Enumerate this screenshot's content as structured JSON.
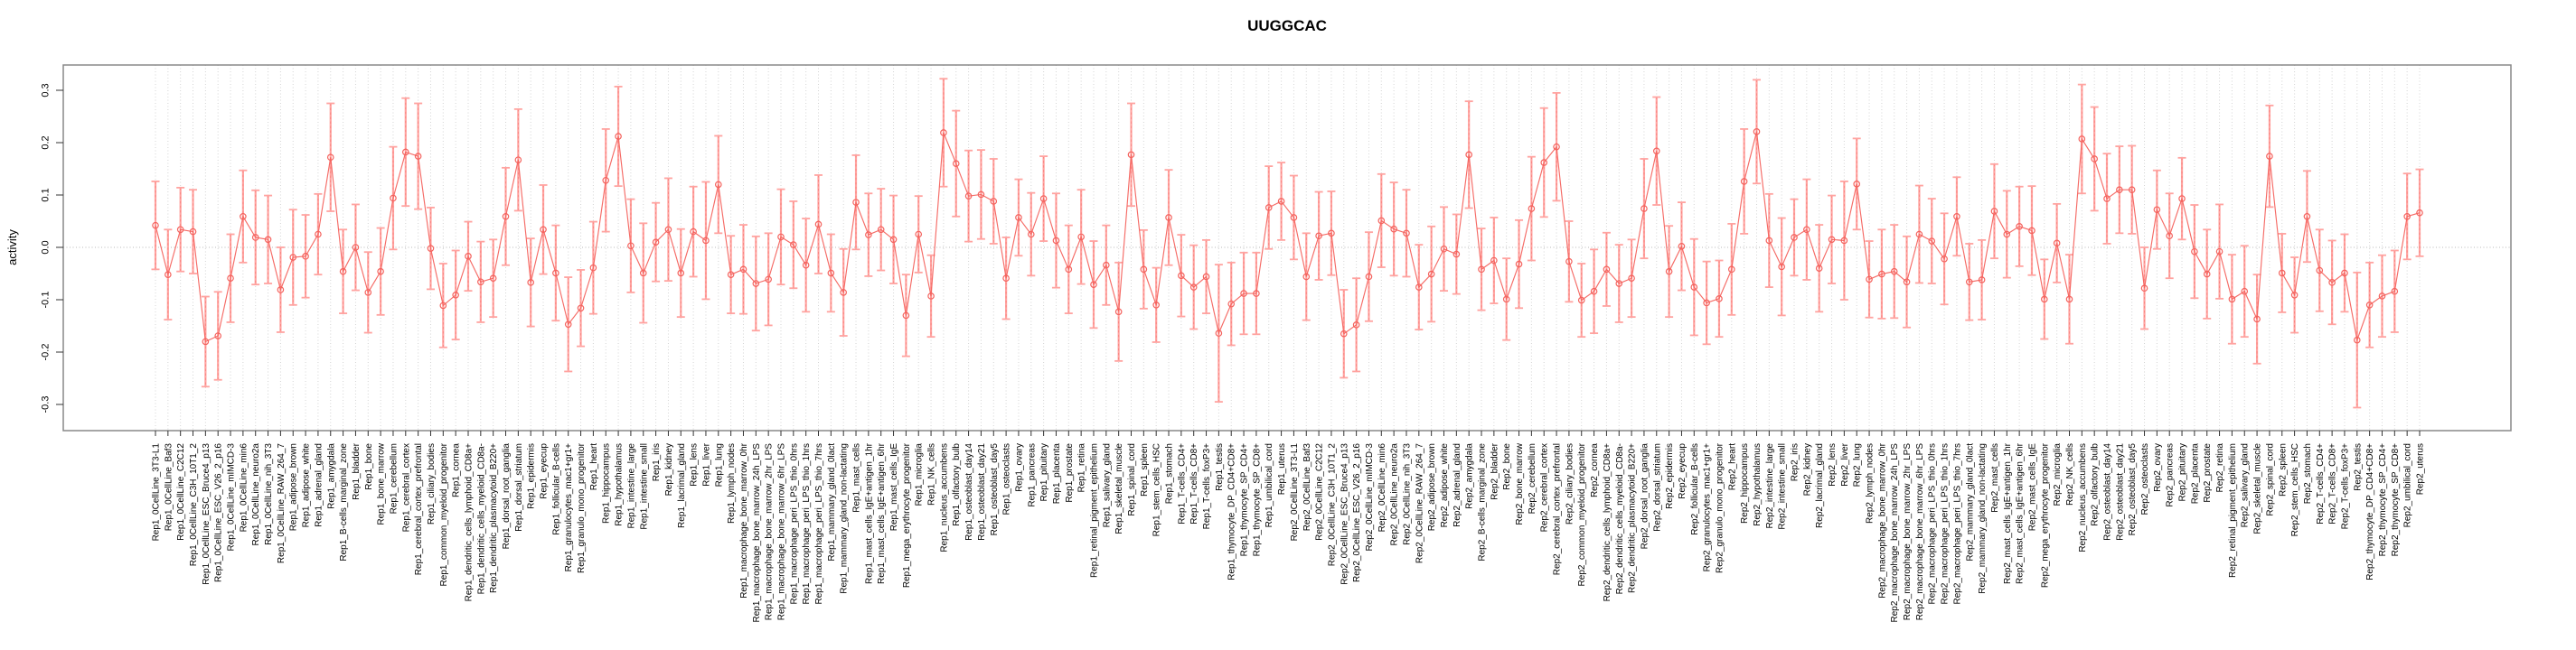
{
  "chart_data": {
    "type": "scatter",
    "title": "UUGGCAC",
    "xlabel": "",
    "ylabel": "activity",
    "ylim": [
      -0.33,
      0.35
    ],
    "yticks": [
      -0.3,
      -0.2,
      -0.1,
      0.0,
      0.1,
      0.2,
      0.3
    ],
    "grid": "dotted vertical gridline per category; dotted horizontal line at 0",
    "legend_position": "none",
    "marker": "open-circle",
    "colors": {
      "point_line": "#f4635e",
      "error_bar": "#ffa3a0",
      "gridline": "#d4d4d4",
      "zero_line": "#b8b8b8",
      "plot_border": "#888888",
      "axis_tick": "#333333",
      "tick_label": "#000000"
    },
    "categories": [
      "Rep1_0CellLine_3T3-L1",
      "Rep1_0CellLine_Baf3",
      "Rep1_0CellLine_C2C12",
      "Rep1_0CellLine_C3H_10T1_2",
      "Rep1_0CellLine_ESC_Bruce4_p13",
      "Rep1_0CellLine_ESC_V26_2_p16",
      "Rep1_0CellLine_mIMCD-3",
      "Rep1_0CellLine_min6",
      "Rep1_0CellLine_neuro2a",
      "Rep1_0CellLine_nih_3T3",
      "Rep1_0CellLine_RAW_264_7",
      "Rep1_adipose_brown",
      "Rep1_adipose_white",
      "Rep1_adrenal_gland",
      "Rep1_amygdala",
      "Rep1_B-cells_marginal_zone",
      "Rep1_bladder",
      "Rep1_bone",
      "Rep1_bone_marrow",
      "Rep1_cerebellum",
      "Rep1_cerebral_cortex",
      "Rep1_cerebral_cortex_prefrontal",
      "Rep1_ciliary_bodies",
      "Rep1_common_myeloid_progenitor",
      "Rep1_cornea",
      "Rep1_dendritic_cells_lymphoid_CD8a+",
      "Rep1_dendritic_cells_myeloid_CD8a-",
      "Rep1_dendritic_plasmacytoid_B220+",
      "Rep1_dorsal_root_ganglia",
      "Rep1_dorsal_striatum",
      "Rep1_epidermis",
      "Rep1_eyecup",
      "Rep1_follicular_B-cells",
      "Rep1_granulocytes_mac1+gr1+",
      "Rep1_granulo_mono_progenitor",
      "Rep1_heart",
      "Rep1_hippocampus",
      "Rep1_hypothalamus",
      "Rep1_intestine_large",
      "Rep1_intestine_small",
      "Rep1_iris",
      "Rep1_kidney",
      "Rep1_lacrimal_gland",
      "Rep1_lens",
      "Rep1_liver",
      "Rep1_lung",
      "Rep1_lymph_nodes",
      "Rep1_macrophage_bone_marrow_0hr",
      "Rep1_macrophage_bone_marrow_24h_LPS",
      "Rep1_macrophage_bone_marrow_2hr_LPS",
      "Rep1_macrophage_bone_marrow_6hr_LPS",
      "Rep1_macrophage_peri_LPS_thio_0hrs",
      "Rep1_macrophage_peri_LPS_thio_1hrs",
      "Rep1_macrophage_peri_LPS_thio_7hrs",
      "Rep1_mammary_gland_0lact",
      "Rep1_mammary_gland_non-lactating",
      "Rep1_mast_cells",
      "Rep1_mast_cells_IgE+antigen_1hr",
      "Rep1_mast_cells_IgE+antigen_6hr",
      "Rep1_mast_cells_IgE",
      "Rep1_mega_erythrocyte_progenitor",
      "Rep1_microglia",
      "Rep1_NK_cells",
      "Rep1_nucleus_accumbens",
      "Rep1_olfactory_bulb",
      "Rep1_osteoblast_day14",
      "Rep1_osteoblast_day21",
      "Rep1_osteoblast_day5",
      "Rep1_osteoclasts",
      "Rep1_ovary",
      "Rep1_pancreas",
      "Rep1_pituitary",
      "Rep1_placenta",
      "Rep1_prostate",
      "Rep1_retina",
      "Rep1_retinal_pigment_epithelium",
      "Rep1_salivary_gland",
      "Rep1_skeletal_muscle",
      "Rep1_spinal_cord",
      "Rep1_spleen",
      "Rep1_stem_cells_HSC",
      "Rep1_stomach",
      "Rep1_T-cells_CD4+",
      "Rep1_T-cells_CD8+",
      "Rep1_T-cells_foxP3+",
      "Rep1_testis",
      "Rep1_thymocyte_DP_CD4+CD8+",
      "Rep1_thymocyte_SP_CD4+",
      "Rep1_thymocyte_SP_CD8+",
      "Rep1_umbilical_cord",
      "Rep1_uterus",
      "Rep2_0CellLine_3T3-L1",
      "Rep2_0CellLine_Baf3",
      "Rep2_0CellLine_C2C12",
      "Rep2_0CellLine_C3H_10T1_2",
      "Rep2_0CellLine_ESC_Bruce4_p13",
      "Rep2_0CellLine_ESC_V26_2_p16",
      "Rep2_0CellLine_mIMCD-3",
      "Rep2_0CellLine_min6",
      "Rep2_0CellLine_neuro2a",
      "Rep2_0CellLine_nih_3T3",
      "Rep2_0CellLine_RAW_264_7",
      "Rep2_adipose_brown",
      "Rep2_adipose_white",
      "Rep2_adrenal_gland",
      "Rep2_amygdala",
      "Rep2_B-cells_marginal_zone",
      "Rep2_bladder",
      "Rep2_bone",
      "Rep2_bone_marrow",
      "Rep2_cerebellum",
      "Rep2_cerebral_cortex",
      "Rep2_cerebral_cortex_prefrontal",
      "Rep2_ciliary_bodies",
      "Rep2_common_myeloid_progenitor",
      "Rep2_cornea",
      "Rep2_dendritic_cells_lymphoid_CD8a+",
      "Rep2_dendritic_cells_myeloid_CD8a-",
      "Rep2_dendritic_plasmacytoid_B220+",
      "Rep2_dorsal_root_ganglia",
      "Rep2_dorsal_striatum",
      "Rep2_epidermis",
      "Rep2_eyecup",
      "Rep2_follicular_B-cells",
      "Rep2_granulocytes_mac1+gr1+",
      "Rep2_granulo_mono_progenitor",
      "Rep2_heart",
      "Rep2_hippocampus",
      "Rep2_hypothalamus",
      "Rep2_intestine_large",
      "Rep2_intestine_small",
      "Rep2_iris",
      "Rep2_kidney",
      "Rep2_lacrimal_gland",
      "Rep2_lens",
      "Rep2_liver",
      "Rep2_lung",
      "Rep2_lymph_nodes",
      "Rep2_macrophage_bone_marrow_0hr",
      "Rep2_macrophage_bone_marrow_24h_LPS",
      "Rep2_macrophage_bone_marrow_2hr_LPS",
      "Rep2_macrophage_bone_marrow_6hr_LPS",
      "Rep2_macrophage_peri_LPS_thio_0hrs",
      "Rep2_macrophage_peri_LPS_thio_1hrs",
      "Rep2_macrophage_peri_LPS_thio_7hrs",
      "Rep2_mammary_gland_0lact",
      "Rep2_mammary_gland_non-lactating",
      "Rep2_mast_cells",
      "Rep2_mast_cells_IgE+antigen_1hr",
      "Rep2_mast_cells_IgE+antigen_6hr",
      "Rep2_mast_cells_IgE",
      "Rep2_mega_erythrocyte_progenitor",
      "Rep2_microglia",
      "Rep2_NK_cells",
      "Rep2_nucleus_accumbens",
      "Rep2_olfactory_bulb",
      "Rep2_osteoblast_day14",
      "Rep2_osteoblast_day21",
      "Rep2_osteoblast_day5",
      "Rep2_osteoclasts",
      "Rep2_ovary",
      "Rep2_pancreas",
      "Rep2_pituitary",
      "Rep2_placenta",
      "Rep2_prostate",
      "Rep2_retina",
      "Rep2_retinal_pigment_epithelium",
      "Rep2_salivary_gland",
      "Rep2_skeletal_muscle",
      "Rep2_spinal_cord",
      "Rep2_spleen",
      "Rep2_stem_cells_HSC",
      "Rep2_stomach",
      "Rep2_T-cells_CD4+",
      "Rep2_T-cells_CD8+",
      "Rep2_T-cells_foxP3+",
      "Rep2_testis",
      "Rep2_thymocyte_DP_CD4+CD8+",
      "Rep2_thymocyte_SP_CD4+",
      "Rep2_thymocyte_SP_CD8+",
      "Rep2_umbilical_cord",
      "Rep2_uterus"
    ],
    "series": [
      {
        "name": "activity",
        "values": [
          0.042,
          -0.052,
          0.034,
          0.03,
          -0.18,
          -0.169,
          -0.059,
          0.059,
          0.019,
          0.015,
          -0.081,
          -0.019,
          -0.017,
          0.025,
          0.172,
          -0.046,
          0.0,
          -0.086,
          -0.046,
          0.094,
          0.182,
          0.174,
          -0.002,
          -0.111,
          -0.091,
          -0.017,
          -0.066,
          -0.059,
          0.059,
          0.167,
          -0.067,
          0.034,
          -0.049,
          -0.147,
          -0.116,
          -0.039,
          0.128,
          0.212,
          0.003,
          -0.049,
          0.01,
          0.034,
          -0.049,
          0.03,
          0.013,
          0.12,
          -0.052,
          -0.042,
          -0.069,
          -0.061,
          0.02,
          0.005,
          -0.034,
          0.044,
          -0.049,
          -0.086,
          0.086,
          0.024,
          0.034,
          0.015,
          -0.13,
          0.025,
          -0.093,
          0.219,
          0.16,
          0.098,
          0.101,
          0.088,
          -0.059,
          0.057,
          0.025,
          0.093,
          0.013,
          -0.042,
          0.02,
          -0.071,
          -0.034,
          -0.123,
          0.177,
          -0.042,
          -0.11,
          0.057,
          -0.054,
          -0.076,
          -0.056,
          -0.164,
          -0.108,
          -0.088,
          -0.088,
          0.076,
          0.088,
          0.057,
          -0.056,
          0.022,
          0.027,
          -0.165,
          -0.148,
          -0.056,
          0.051,
          0.035,
          0.027,
          -0.076,
          -0.051,
          -0.003,
          -0.013,
          0.177,
          -0.042,
          -0.025,
          -0.099,
          -0.032,
          0.074,
          0.162,
          0.192,
          -0.027,
          -0.101,
          -0.084,
          -0.042,
          -0.069,
          -0.059,
          0.074,
          0.184,
          -0.046,
          0.002,
          -0.076,
          -0.106,
          -0.098,
          -0.042,
          0.126,
          0.221,
          0.013,
          -0.037,
          0.019,
          0.034,
          -0.04,
          0.015,
          0.013,
          0.121,
          -0.061,
          -0.051,
          -0.046,
          -0.066,
          0.025,
          0.012,
          -0.022,
          0.059,
          -0.066,
          -0.062,
          0.069,
          0.025,
          0.04,
          0.032,
          -0.099,
          0.008,
          -0.099,
          0.207,
          0.169,
          0.093,
          0.11,
          0.11,
          -0.078,
          0.072,
          0.022,
          0.093,
          -0.008,
          -0.051,
          -0.008,
          -0.099,
          -0.084,
          -0.137,
          0.174,
          -0.049,
          -0.091,
          0.059,
          -0.044,
          -0.067,
          -0.049,
          -0.177,
          -0.11,
          -0.093,
          -0.084,
          0.059,
          0.066
        ],
        "error_half": [
          0.084,
          0.086,
          0.08,
          0.08,
          0.086,
          0.084,
          0.084,
          0.088,
          0.09,
          0.084,
          0.081,
          0.091,
          0.079,
          0.077,
          0.103,
          0.08,
          0.082,
          0.077,
          0.083,
          0.098,
          0.103,
          0.101,
          0.078,
          0.08,
          0.085,
          0.066,
          0.077,
          0.074,
          0.093,
          0.097,
          0.084,
          0.085,
          0.091,
          0.09,
          0.073,
          0.088,
          0.098,
          0.095,
          0.089,
          0.095,
          0.075,
          0.098,
          0.084,
          0.086,
          0.112,
          0.093,
          0.074,
          0.085,
          0.09,
          0.088,
          0.091,
          0.083,
          0.089,
          0.094,
          0.074,
          0.083,
          0.09,
          0.079,
          0.078,
          0.084,
          0.078,
          0.073,
          0.078,
          0.103,
          0.101,
          0.087,
          0.085,
          0.081,
          0.078,
          0.073,
          0.079,
          0.081,
          0.09,
          0.084,
          0.09,
          0.083,
          0.076,
          0.094,
          0.098,
          0.075,
          0.071,
          0.091,
          0.078,
          0.08,
          0.07,
          0.131,
          0.079,
          0.078,
          0.078,
          0.079,
          0.074,
          0.08,
          0.083,
          0.084,
          0.08,
          0.084,
          0.089,
          0.085,
          0.089,
          0.089,
          0.083,
          0.081,
          0.091,
          0.08,
          0.076,
          0.102,
          0.078,
          0.082,
          0.078,
          0.084,
          0.099,
          0.104,
          0.103,
          0.077,
          0.07,
          0.08,
          0.07,
          0.074,
          0.074,
          0.095,
          0.103,
          0.087,
          0.084,
          0.092,
          0.079,
          0.073,
          0.087,
          0.1,
          0.099,
          0.089,
          0.093,
          0.073,
          0.096,
          0.083,
          0.084,
          0.113,
          0.087,
          0.073,
          0.085,
          0.089,
          0.087,
          0.093,
          0.081,
          0.087,
          0.075,
          0.073,
          0.076,
          0.09,
          0.083,
          0.076,
          0.085,
          0.076,
          0.075,
          0.085,
          0.104,
          0.099,
          0.086,
          0.083,
          0.084,
          0.078,
          0.075,
          0.081,
          0.078,
          0.089,
          0.085,
          0.09,
          0.085,
          0.087,
          0.085,
          0.097,
          0.075,
          0.072,
          0.087,
          0.078,
          0.08,
          0.074,
          0.129,
          0.081,
          0.078,
          0.078,
          0.082,
          0.083
        ]
      }
    ]
  }
}
